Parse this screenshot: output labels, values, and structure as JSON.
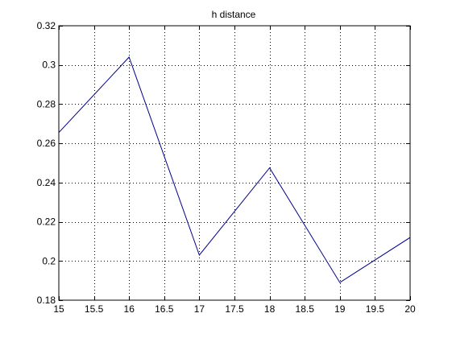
{
  "chart_data": {
    "type": "line",
    "title": "h distance",
    "xlabel": "",
    "ylabel": "",
    "xlim": [
      15,
      20
    ],
    "ylim": [
      0.18,
      0.32
    ],
    "grid": true,
    "x_ticks": [
      15,
      15.5,
      16,
      16.5,
      17,
      17.5,
      18,
      18.5,
      19,
      19.5,
      20
    ],
    "x_tick_labels": [
      "15",
      "15.5",
      "16",
      "16.5",
      "17",
      "17.5",
      "18",
      "18.5",
      "19",
      "19.5",
      "20"
    ],
    "y_ticks": [
      0.18,
      0.2,
      0.22,
      0.24,
      0.26,
      0.28,
      0.3,
      0.32
    ],
    "y_tick_labels": [
      "0.18",
      "0.2",
      "0.22",
      "0.24",
      "0.26",
      "0.28",
      "0.3",
      "0.32"
    ],
    "series": [
      {
        "x": [
          15,
          16,
          17,
          18,
          19,
          20
        ],
        "y": [
          0.2655,
          0.304,
          0.203,
          0.2475,
          0.189,
          0.212
        ],
        "color": "#00008B"
      }
    ]
  }
}
